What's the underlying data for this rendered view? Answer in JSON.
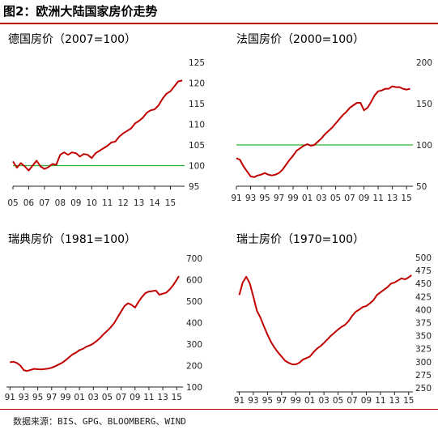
{
  "figure_title": "图2：欧洲大陆国家房价走势",
  "source": "数据来源：BIS、GPG、BLOOMBERG、WIND",
  "colors": {
    "line": "#c00000",
    "baseline": "#2db52d",
    "axis": "#222222",
    "title_rule": "#c00000"
  },
  "chart_data": [
    {
      "type": "line",
      "title": "德国房价（2007=100）",
      "x_ticks": [
        "05",
        "06",
        "07",
        "08",
        "09",
        "10",
        "11",
        "12",
        "13",
        "14",
        "15"
      ],
      "xlim": [
        2005,
        2015.9
      ],
      "ylim": [
        95,
        125
      ],
      "y_ticks": [
        95,
        100,
        105,
        110,
        115,
        120,
        125
      ],
      "baseline": 100,
      "series": [
        {
          "x": [
            2005.0,
            2005.25,
            2005.5,
            2005.75,
            2006.0,
            2006.25,
            2006.5,
            2006.75,
            2007.0,
            2007.25,
            2007.5,
            2007.75,
            2008.0,
            2008.25,
            2008.5,
            2008.75,
            2009.0,
            2009.25,
            2009.5,
            2009.75,
            2010.0,
            2010.25,
            2010.5,
            2010.75,
            2011.0,
            2011.25,
            2011.5,
            2011.75,
            2012.0,
            2012.25,
            2012.5,
            2012.75,
            2013.0,
            2013.25,
            2013.5,
            2013.75,
            2014.0,
            2014.25,
            2014.5,
            2014.75,
            2015.0,
            2015.25,
            2015.5,
            2015.75
          ],
          "y": [
            101,
            99.5,
            100.6,
            99.8,
            98.8,
            100,
            101.2,
            99.8,
            99.2,
            99.6,
            100.4,
            100.2,
            102.6,
            103.2,
            102.6,
            103.2,
            103,
            102.2,
            102.8,
            102.6,
            101.8,
            103,
            103.6,
            104.2,
            104.8,
            105.6,
            105.8,
            107,
            107.8,
            108.4,
            109,
            110.2,
            110.8,
            111.6,
            112.8,
            113.4,
            113.6,
            114.6,
            116.2,
            117.4,
            118,
            119.2,
            120.4,
            120.6
          ]
        }
      ]
    },
    {
      "type": "line",
      "title": "法国房价（2000=100）",
      "x_ticks": [
        "91",
        "93",
        "95",
        "97",
        "99",
        "01",
        "03",
        "05",
        "07",
        "09",
        "11",
        "13",
        "15"
      ],
      "xlim": [
        1991,
        2015.9
      ],
      "ylim": [
        50,
        200
      ],
      "y_ticks": [
        50,
        100,
        150,
        200
      ],
      "baseline": 100,
      "series": [
        {
          "x": [
            1991,
            1991.5,
            1992,
            1992.5,
            1993,
            1993.5,
            1994,
            1994.5,
            1995,
            1995.5,
            1996,
            1996.5,
            1997,
            1997.5,
            1998,
            1998.5,
            1999,
            1999.5,
            2000,
            2000.5,
            2001,
            2001.5,
            2002,
            2002.5,
            2003,
            2003.5,
            2004,
            2004.5,
            2005,
            2005.5,
            2006,
            2006.5,
            2007,
            2007.5,
            2008,
            2008.5,
            2009,
            2009.5,
            2010,
            2010.5,
            2011,
            2011.5,
            2012,
            2012.5,
            2013,
            2013.5,
            2014,
            2014.5,
            2015,
            2015.5
          ],
          "y": [
            84,
            82,
            74,
            68,
            62,
            61,
            63,
            64,
            66,
            64,
            63,
            64,
            66,
            70,
            76,
            82,
            87,
            93,
            96,
            99,
            101,
            99,
            100,
            104,
            108,
            113,
            117,
            121,
            126,
            131,
            136,
            140,
            145,
            148,
            151,
            151,
            142,
            145,
            152,
            160,
            165,
            166,
            168,
            168,
            171,
            170,
            170,
            168,
            167,
            168
          ]
        }
      ]
    },
    {
      "type": "line",
      "title": "瑞典房价（1981=100）",
      "x_ticks": [
        "91",
        "93",
        "95",
        "97",
        "99",
        "01",
        "03",
        "05",
        "07",
        "09",
        "11",
        "13",
        "15"
      ],
      "xlim": [
        1990.5,
        2015.9
      ],
      "ylim": [
        100,
        700
      ],
      "y_ticks": [
        100,
        200,
        300,
        400,
        500,
        600,
        700
      ],
      "series": [
        {
          "x": [
            1991,
            1991.5,
            1992,
            1992.5,
            1993,
            1993.5,
            1994,
            1994.5,
            1995,
            1995.5,
            1996,
            1996.5,
            1997,
            1997.5,
            1998,
            1998.5,
            1999,
            1999.5,
            2000,
            2000.5,
            2001,
            2001.5,
            2002,
            2002.5,
            2003,
            2003.5,
            2004,
            2004.5,
            2005,
            2005.5,
            2006,
            2006.5,
            2007,
            2007.5,
            2008,
            2008.5,
            2009,
            2009.5,
            2010,
            2010.5,
            2011,
            2011.5,
            2012,
            2012.5,
            2013,
            2013.5,
            2014,
            2014.5,
            2015,
            2015.3
          ],
          "y": [
            215,
            218,
            212,
            200,
            178,
            175,
            180,
            185,
            183,
            182,
            184,
            186,
            190,
            197,
            205,
            213,
            225,
            238,
            252,
            260,
            272,
            278,
            288,
            294,
            303,
            315,
            330,
            347,
            362,
            378,
            398,
            425,
            452,
            478,
            490,
            483,
            470,
            497,
            520,
            538,
            545,
            547,
            550,
            530,
            535,
            540,
            555,
            575,
            600,
            617
          ]
        }
      ]
    },
    {
      "type": "line",
      "title": "瑞士房价（1970=100）",
      "x_ticks": [
        "91",
        "93",
        "95",
        "97",
        "99",
        "01",
        "03",
        "05",
        "07",
        "09",
        "11",
        "13",
        "15"
      ],
      "xlim": [
        1990.6,
        2015.6
      ],
      "ylim": [
        250,
        500
      ],
      "y_ticks": [
        250,
        275,
        300,
        325,
        350,
        375,
        400,
        425,
        450,
        475,
        500
      ],
      "series": [
        {
          "x": [
            1991,
            1991.5,
            1992,
            1992.5,
            1993,
            1993.5,
            1994,
            1994.5,
            1995,
            1995.5,
            1996,
            1996.5,
            1997,
            1997.5,
            1998,
            1998.5,
            1999,
            1999.5,
            2000,
            2000.5,
            2001,
            2001.5,
            2002,
            2002.5,
            2003,
            2003.5,
            2004,
            2004.5,
            2005,
            2005.5,
            2006,
            2006.5,
            2007,
            2007.5,
            2008,
            2008.5,
            2009,
            2009.5,
            2010,
            2010.5,
            2011,
            2011.5,
            2012,
            2012.5,
            2013,
            2013.5,
            2014,
            2014.5,
            2015,
            2015.4
          ],
          "y": [
            428,
            452,
            463,
            450,
            425,
            398,
            385,
            368,
            352,
            338,
            327,
            318,
            310,
            302,
            298,
            295,
            295,
            298,
            304,
            307,
            310,
            318,
            325,
            330,
            336,
            343,
            350,
            356,
            362,
            367,
            371,
            378,
            388,
            396,
            400,
            405,
            407,
            412,
            418,
            428,
            433,
            438,
            443,
            450,
            452,
            456,
            460,
            458,
            462,
            466
          ]
        }
      ]
    }
  ]
}
